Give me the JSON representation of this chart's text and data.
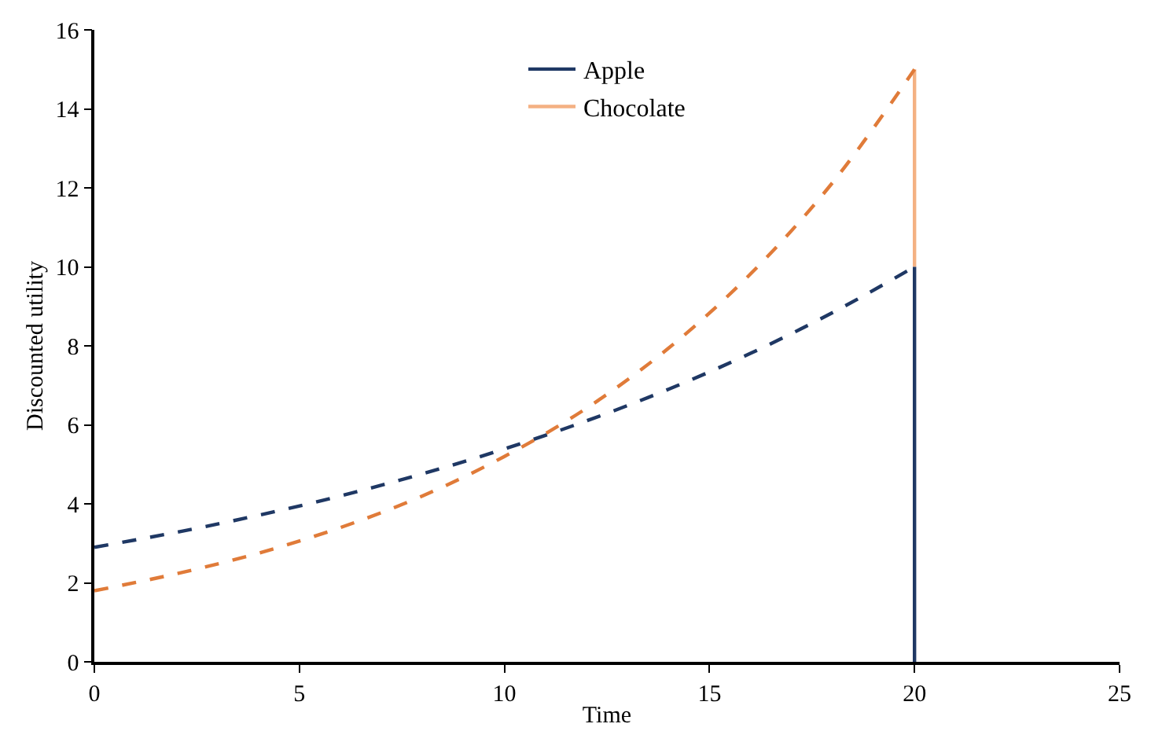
{
  "chart_data": {
    "type": "line",
    "xlabel": "Time",
    "ylabel": "Discounted utility",
    "xlim": [
      0,
      25
    ],
    "xticks": [
      0,
      5,
      10,
      15,
      20,
      25
    ],
    "ylim": [
      0,
      16
    ],
    "yticks": [
      0,
      2,
      4,
      6,
      8,
      10,
      12,
      14,
      16
    ],
    "grid": false,
    "legend": "top",
    "marker": "none",
    "series": [
      {
        "name": "Chocolate",
        "color": "#f4b183",
        "x": [
          20,
          20
        ],
        "values": [
          10,
          15
        ],
        "line_style": "solid"
      },
      {
        "name": "Apple",
        "color": "#1f3864",
        "x": [
          20,
          20
        ],
        "values": [
          0,
          10
        ],
        "line_style": "solid"
      },
      {
        "color": "#1f3864",
        "x": [
          0,
          2,
          4,
          6,
          8,
          10,
          12,
          14,
          16,
          18,
          20
        ],
        "values": [
          2.9,
          3.28,
          3.71,
          4.2,
          4.76,
          5.39,
          6.1,
          6.9,
          7.81,
          8.84,
          10.0
        ],
        "line_style": "dashed"
      },
      {
        "color": "#e07b39",
        "x": [
          0,
          2,
          4,
          6,
          8,
          10,
          12,
          14,
          16,
          18,
          20
        ],
        "values": [
          1.8,
          2.23,
          2.75,
          3.4,
          4.2,
          5.2,
          6.42,
          7.94,
          9.82,
          12.13,
          15.0
        ],
        "line_style": "dashed"
      }
    ]
  }
}
